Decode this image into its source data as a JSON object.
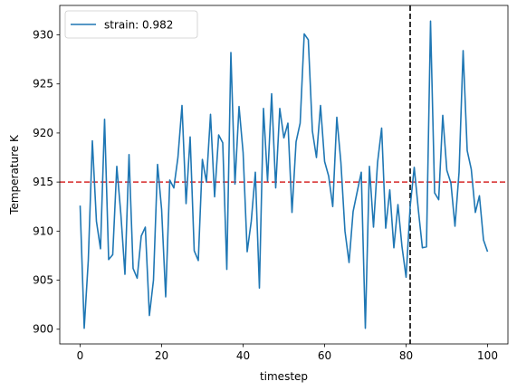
{
  "chart_data": {
    "type": "line",
    "xlabel": "timestep",
    "ylabel": "Temperature K",
    "xlim": [
      -5,
      105
    ],
    "ylim": [
      898.5,
      933.0
    ],
    "xticks": [
      0,
      20,
      40,
      60,
      80,
      100
    ],
    "yticks": [
      900,
      905,
      910,
      915,
      920,
      925,
      930
    ],
    "grid": false,
    "legend_position": "top-left",
    "series": [
      {
        "name": "strain: 0.982",
        "color": "#1f77b4",
        "x": [
          0,
          1,
          2,
          3,
          4,
          5,
          6,
          7,
          8,
          9,
          10,
          11,
          12,
          13,
          14,
          15,
          16,
          17,
          18,
          19,
          20,
          21,
          22,
          23,
          24,
          25,
          26,
          27,
          28,
          29,
          30,
          31,
          32,
          33,
          34,
          35,
          36,
          37,
          38,
          39,
          40,
          41,
          42,
          43,
          44,
          45,
          46,
          47,
          48,
          49,
          50,
          51,
          52,
          53,
          54,
          55,
          56,
          57,
          58,
          59,
          60,
          61,
          62,
          63,
          64,
          65,
          66,
          67,
          68,
          69,
          70,
          71,
          72,
          73,
          74,
          75,
          76,
          77,
          78,
          79,
          80,
          81,
          82,
          83,
          84,
          85,
          86,
          87,
          88,
          89,
          90,
          91,
          92,
          93,
          94,
          95,
          96,
          97,
          98,
          99,
          100
        ],
        "values": [
          912.6,
          900.1,
          907.0,
          919.2,
          911.0,
          908.2,
          921.4,
          907.1,
          907.6,
          916.6,
          911.7,
          905.6,
          917.8,
          906.2,
          905.2,
          909.5,
          910.4,
          901.4,
          905.0,
          916.8,
          912.2,
          903.3,
          915.2,
          914.4,
          917.5,
          922.8,
          912.8,
          919.6,
          908.0,
          907.0,
          917.3,
          915.0,
          921.9,
          913.5,
          919.8,
          919.0,
          906.1,
          928.2,
          914.8,
          922.7,
          918.0,
          907.9,
          911.0,
          916.0,
          904.2,
          922.5,
          915.1,
          924.0,
          914.4,
          922.5,
          919.5,
          921.0,
          911.9,
          919.1,
          921.0,
          930.1,
          929.5,
          920.2,
          917.5,
          922.8,
          917.1,
          915.6,
          912.5,
          921.6,
          917.0,
          910.0,
          906.8,
          912.0,
          914.0,
          916.0,
          900.1,
          916.6,
          910.4,
          917.0,
          920.5,
          910.3,
          914.2,
          908.3,
          912.7,
          908.4,
          905.3,
          912.5,
          916.5,
          912.2,
          908.3,
          908.4,
          931.4,
          913.9,
          913.2,
          921.8,
          916.2,
          914.9,
          910.5,
          916.0,
          928.4,
          918.2,
          916.3,
          911.9,
          913.6,
          909.1,
          907.9
        ]
      }
    ],
    "reference_lines": [
      {
        "orientation": "horizontal",
        "value": 915,
        "color": "#d62728",
        "style": "dashed"
      },
      {
        "orientation": "vertical",
        "value": 81,
        "color": "#000000",
        "style": "dashed"
      }
    ]
  }
}
